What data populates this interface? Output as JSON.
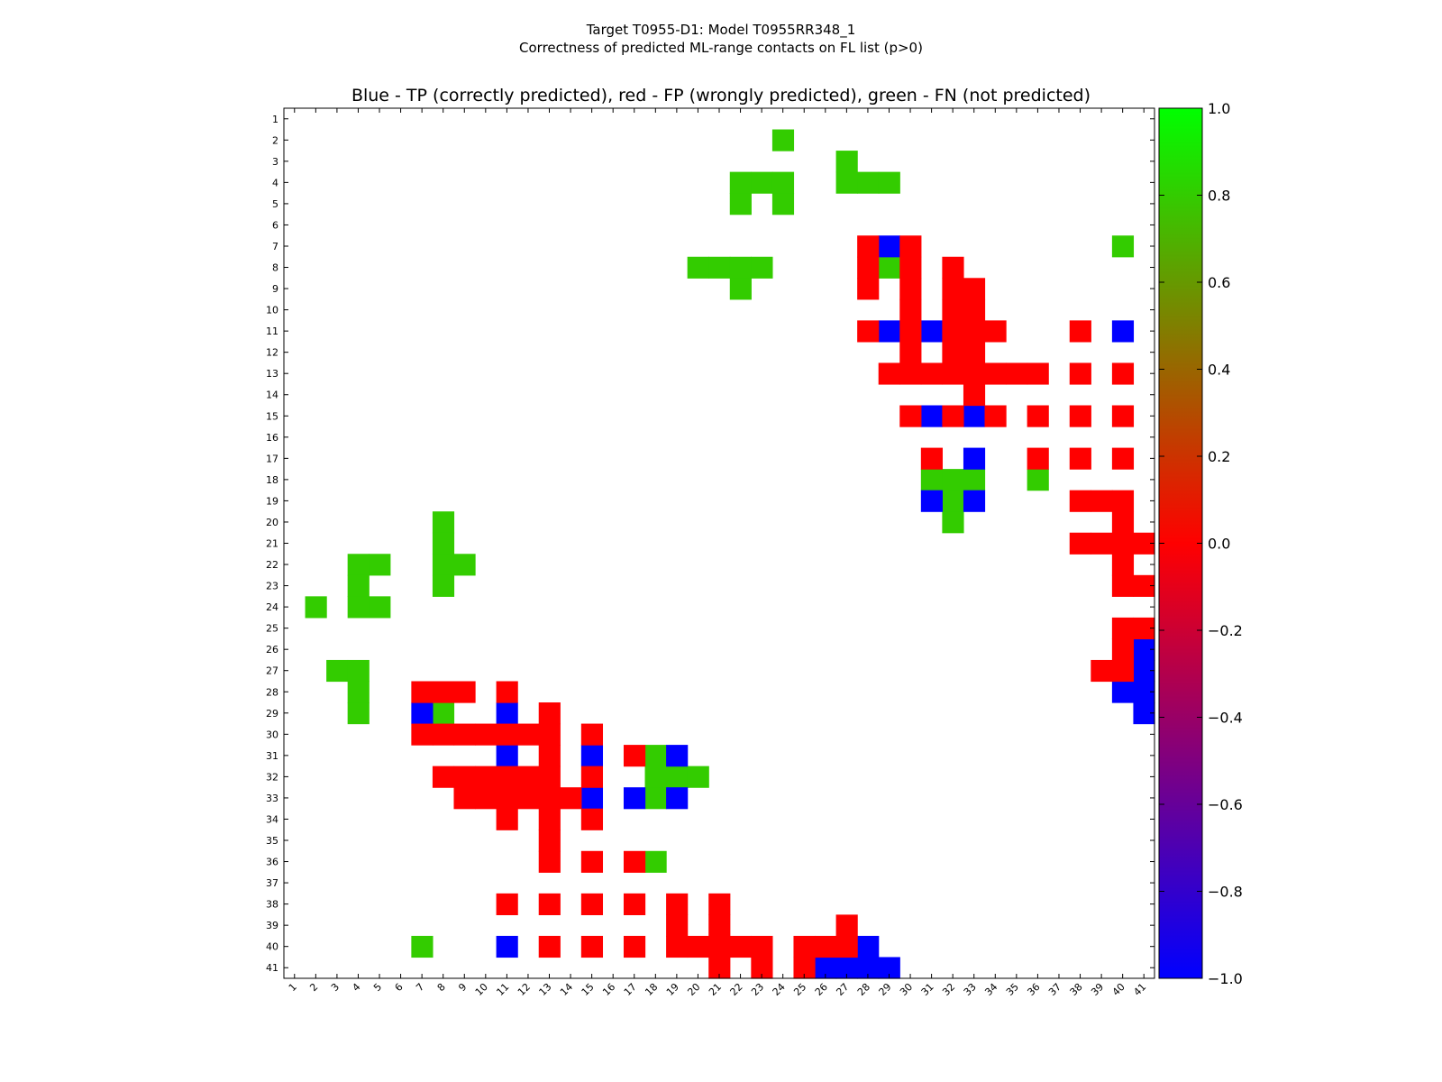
{
  "chart_data": {
    "type": "heatmap",
    "suptitle_line1": "Target T0955-D1: Model T0955RR348_1",
    "suptitle_line2": "Correctness of predicted ML-range contacts on FL list (p>0)",
    "title": "Blue - TP (correctly predicted), red - FP (wrongly predicted), green - FN (not predicted)",
    "n": 41,
    "x_ticks": [
      "1",
      "2",
      "3",
      "4",
      "5",
      "6",
      "7",
      "8",
      "9",
      "10",
      "11",
      "12",
      "13",
      "14",
      "15",
      "16",
      "17",
      "18",
      "19",
      "20",
      "21",
      "22",
      "23",
      "24",
      "25",
      "26",
      "27",
      "28",
      "29",
      "30",
      "31",
      "32",
      "33",
      "34",
      "35",
      "36",
      "37",
      "38",
      "39",
      "40",
      "41"
    ],
    "y_ticks": [
      "1",
      "2",
      "3",
      "4",
      "5",
      "6",
      "7",
      "8",
      "9",
      "10",
      "11",
      "12",
      "13",
      "14",
      "15",
      "16",
      "17",
      "18",
      "19",
      "20",
      "21",
      "22",
      "23",
      "24",
      "25",
      "26",
      "27",
      "28",
      "29",
      "30",
      "31",
      "32",
      "33",
      "34",
      "35",
      "36",
      "37",
      "38",
      "39",
      "40",
      "41"
    ],
    "legend": {
      "TP": "Blue",
      "FP": "red",
      "FN": "green"
    },
    "colors": {
      "tp": "#0000ff",
      "fp": "#ff0000",
      "fn": "#33cc00"
    },
    "colorbar": {
      "range": [
        -1.0,
        1.0
      ],
      "ticks": [
        "1.0",
        "0.8",
        "0.6",
        "0.4",
        "0.2",
        "0.0",
        "−0.2",
        "−0.4",
        "−0.6",
        "−0.8",
        "−1.0"
      ],
      "tick_values": [
        1.0,
        0.8,
        0.6,
        0.4,
        0.2,
        0.0,
        -0.2,
        -0.4,
        -0.6,
        -0.8,
        -1.0
      ],
      "gradient": [
        "#00ff00",
        "#ff0000",
        "#0000ff"
      ]
    },
    "cells": {
      "fn": [
        [
          2,
          24
        ],
        [
          3,
          27
        ],
        [
          4,
          22
        ],
        [
          4,
          23
        ],
        [
          4,
          24
        ],
        [
          4,
          27
        ],
        [
          4,
          28
        ],
        [
          4,
          29
        ],
        [
          5,
          22
        ],
        [
          5,
          24
        ],
        [
          7,
          40
        ],
        [
          8,
          20
        ],
        [
          8,
          21
        ],
        [
          8,
          22
        ],
        [
          8,
          23
        ],
        [
          8,
          29
        ],
        [
          9,
          22
        ],
        [
          18,
          31
        ],
        [
          18,
          32
        ],
        [
          18,
          33
        ],
        [
          18,
          36
        ],
        [
          19,
          32
        ],
        [
          20,
          32
        ],
        [
          20,
          8
        ],
        [
          21,
          8
        ],
        [
          22,
          4
        ],
        [
          22,
          5
        ],
        [
          22,
          8
        ],
        [
          22,
          9
        ],
        [
          23,
          4
        ],
        [
          23,
          8
        ],
        [
          24,
          2
        ],
        [
          24,
          4
        ],
        [
          24,
          5
        ],
        [
          27,
          3
        ],
        [
          27,
          4
        ],
        [
          28,
          4
        ],
        [
          29,
          4
        ],
        [
          29,
          8
        ],
        [
          31,
          18
        ],
        [
          32,
          18
        ],
        [
          32,
          19
        ],
        [
          32,
          20
        ],
        [
          33,
          18
        ],
        [
          36,
          18
        ],
        [
          40,
          7
        ]
      ],
      "tp": [
        [
          7,
          29
        ],
        [
          11,
          29
        ],
        [
          11,
          31
        ],
        [
          11,
          40
        ],
        [
          15,
          31
        ],
        [
          15,
          33
        ],
        [
          17,
          33
        ],
        [
          19,
          31
        ],
        [
          19,
          33
        ],
        [
          26,
          41
        ],
        [
          27,
          41
        ],
        [
          28,
          40
        ],
        [
          28,
          41
        ],
        [
          29,
          41
        ],
        [
          29,
          7
        ],
        [
          29,
          11
        ],
        [
          31,
          11
        ],
        [
          31,
          15
        ],
        [
          31,
          19
        ],
        [
          33,
          15
        ],
        [
          33,
          17
        ],
        [
          33,
          19
        ],
        [
          40,
          11
        ],
        [
          40,
          28
        ],
        [
          41,
          26
        ],
        [
          41,
          27
        ],
        [
          41,
          28
        ],
        [
          41,
          29
        ]
      ],
      "fp": [
        [
          7,
          28
        ],
        [
          7,
          30
        ],
        [
          8,
          28
        ],
        [
          8,
          30
        ],
        [
          8,
          32
        ],
        [
          9,
          28
        ],
        [
          9,
          30
        ],
        [
          9,
          32
        ],
        [
          9,
          33
        ],
        [
          10,
          30
        ],
        [
          10,
          32
        ],
        [
          10,
          33
        ],
        [
          11,
          28
        ],
        [
          11,
          30
        ],
        [
          11,
          32
        ],
        [
          11,
          33
        ],
        [
          11,
          34
        ],
        [
          11,
          38
        ],
        [
          12,
          30
        ],
        [
          12,
          32
        ],
        [
          12,
          33
        ],
        [
          13,
          29
        ],
        [
          13,
          30
        ],
        [
          13,
          31
        ],
        [
          13,
          32
        ],
        [
          13,
          33
        ],
        [
          13,
          34
        ],
        [
          13,
          35
        ],
        [
          13,
          36
        ],
        [
          13,
          38
        ],
        [
          13,
          40
        ],
        [
          14,
          33
        ],
        [
          15,
          30
        ],
        [
          15,
          32
        ],
        [
          15,
          34
        ],
        [
          15,
          36
        ],
        [
          15,
          38
        ],
        [
          15,
          40
        ],
        [
          17,
          31
        ],
        [
          17,
          36
        ],
        [
          17,
          38
        ],
        [
          17,
          40
        ],
        [
          19,
          38
        ],
        [
          19,
          39
        ],
        [
          19,
          40
        ],
        [
          20,
          40
        ],
        [
          21,
          38
        ],
        [
          21,
          39
        ],
        [
          21,
          40
        ],
        [
          21,
          41
        ],
        [
          22,
          40
        ],
        [
          23,
          40
        ],
        [
          23,
          41
        ],
        [
          25,
          40
        ],
        [
          25,
          41
        ],
        [
          26,
          40
        ],
        [
          27,
          39
        ],
        [
          27,
          40
        ],
        [
          28,
          7
        ],
        [
          28,
          8
        ],
        [
          28,
          9
        ],
        [
          28,
          11
        ],
        [
          29,
          13
        ],
        [
          30,
          7
        ],
        [
          30,
          8
        ],
        [
          30,
          9
        ],
        [
          30,
          10
        ],
        [
          30,
          11
        ],
        [
          30,
          12
        ],
        [
          30,
          13
        ],
        [
          30,
          15
        ],
        [
          31,
          13
        ],
        [
          31,
          17
        ],
        [
          32,
          8
        ],
        [
          32,
          9
        ],
        [
          32,
          10
        ],
        [
          32,
          11
        ],
        [
          32,
          12
        ],
        [
          32,
          13
        ],
        [
          32,
          15
        ],
        [
          33,
          9
        ],
        [
          33,
          10
        ],
        [
          33,
          11
        ],
        [
          33,
          12
        ],
        [
          33,
          13
        ],
        [
          33,
          14
        ],
        [
          34,
          11
        ],
        [
          34,
          13
        ],
        [
          34,
          15
        ],
        [
          35,
          13
        ],
        [
          36,
          13
        ],
        [
          36,
          15
        ],
        [
          36,
          17
        ],
        [
          38,
          11
        ],
        [
          38,
          13
        ],
        [
          38,
          15
        ],
        [
          38,
          17
        ],
        [
          38,
          19
        ],
        [
          38,
          21
        ],
        [
          39,
          19
        ],
        [
          39,
          21
        ],
        [
          39,
          27
        ],
        [
          40,
          13
        ],
        [
          40,
          15
        ],
        [
          40,
          17
        ],
        [
          40,
          19
        ],
        [
          40,
          20
        ],
        [
          40,
          21
        ],
        [
          40,
          22
        ],
        [
          40,
          23
        ],
        [
          40,
          25
        ],
        [
          40,
          26
        ],
        [
          40,
          27
        ],
        [
          41,
          21
        ],
        [
          41,
          23
        ],
        [
          41,
          25
        ]
      ]
    }
  }
}
